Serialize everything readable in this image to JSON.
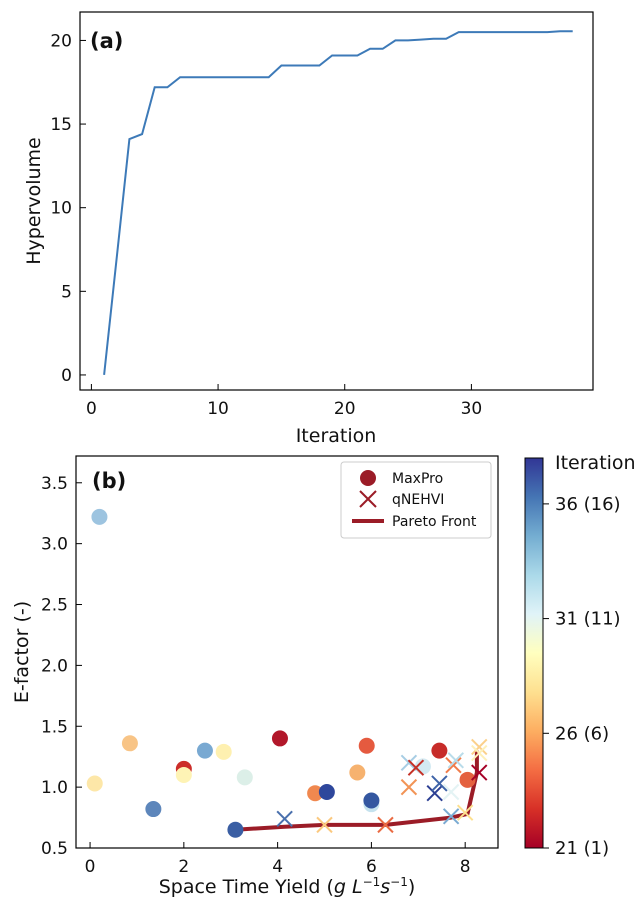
{
  "chart_data": [
    {
      "type": "line",
      "panel_label": "(a)",
      "xlabel": "Iteration",
      "ylabel": "Hypervolume",
      "xlim": [
        -0.9,
        39.6
      ],
      "ylim": [
        -0.9,
        21.7
      ],
      "xticks": [
        0,
        10,
        20,
        30
      ],
      "yticks": [
        0,
        5,
        10,
        15,
        20
      ],
      "line_color": "#3d7ab8",
      "x": [
        1,
        2,
        3,
        4,
        5,
        6,
        7,
        8,
        9,
        10,
        11,
        12,
        13,
        14,
        15,
        16,
        17,
        18,
        19,
        20,
        21,
        22,
        23,
        24,
        25,
        26,
        27,
        28,
        29,
        30,
        31,
        32,
        33,
        34,
        35,
        36,
        37,
        38
      ],
      "y": [
        0,
        7.0,
        14.1,
        14.4,
        17.2,
        17.2,
        17.8,
        17.8,
        17.8,
        17.8,
        17.8,
        17.8,
        17.8,
        17.8,
        18.5,
        18.5,
        18.5,
        18.5,
        19.1,
        19.1,
        19.1,
        19.5,
        19.5,
        20.0,
        20.0,
        20.05,
        20.1,
        20.1,
        20.5,
        20.5,
        20.5,
        20.5,
        20.5,
        20.5,
        20.5,
        20.5,
        20.55,
        20.55
      ]
    },
    {
      "type": "scatter",
      "panel_label": "(b)",
      "xlabel": "Space Time Yield (g L⁻¹s⁻¹)",
      "ylabel": "E-factor (-)",
      "xlim": [
        -0.3,
        8.7
      ],
      "ylim": [
        0.5,
        3.72
      ],
      "xticks": [
        0,
        2,
        4,
        6,
        8
      ],
      "yticks": [
        0.5,
        1.0,
        1.5,
        2.0,
        2.5,
        3.0,
        3.5
      ],
      "legend": {
        "position": "top-right",
        "entries": [
          "MaxPro",
          "qNEHVI",
          "Pareto Front"
        ]
      },
      "colorbar": {
        "title": "Iteration",
        "min": 21,
        "max": 38,
        "ticks": [
          21,
          26,
          31,
          36
        ],
        "tick_labels": [
          "21 (1)",
          "26 (6)",
          "31 (11)",
          "36 (16)"
        ],
        "colors": [
          "#a50026",
          "#d73027",
          "#f46d43",
          "#fdae61",
          "#fee090",
          "#ffffbf",
          "#e0f3f8",
          "#abd9e9",
          "#74add1",
          "#4575b4",
          "#313695"
        ]
      },
      "series": [
        {
          "name": "MaxPro",
          "marker": "circle",
          "points": [
            {
              "x": 0.2,
              "y": 3.22,
              "color": "#9dc4e0"
            },
            {
              "x": 0.1,
              "y": 1.03,
              "color": "#fde7a8"
            },
            {
              "x": 0.85,
              "y": 1.36,
              "color": "#f8c486"
            },
            {
              "x": 1.35,
              "y": 0.82,
              "color": "#5d86bb"
            },
            {
              "x": 2.0,
              "y": 1.15,
              "color": "#cc2e2a"
            },
            {
              "x": 2.0,
              "y": 1.1,
              "color": "#fef3b5"
            },
            {
              "x": 2.45,
              "y": 1.3,
              "color": "#79a9d2"
            },
            {
              "x": 2.85,
              "y": 1.29,
              "color": "#fef0b0"
            },
            {
              "x": 3.3,
              "y": 1.08,
              "color": "#dcefe8"
            },
            {
              "x": 3.1,
              "y": 0.65,
              "color": "#3a5ea3"
            },
            {
              "x": 4.05,
              "y": 1.4,
              "color": "#b2172a"
            },
            {
              "x": 4.8,
              "y": 0.95,
              "color": "#f0884f"
            },
            {
              "x": 5.05,
              "y": 0.96,
              "color": "#2e479c"
            },
            {
              "x": 5.7,
              "y": 1.12,
              "color": "#f6b26f"
            },
            {
              "x": 5.9,
              "y": 1.34,
              "color": "#e55a3f"
            },
            {
              "x": 6.0,
              "y": 0.86,
              "color": "#c5e2ee"
            },
            {
              "x": 6.0,
              "y": 0.89,
              "color": "#3457a0"
            },
            {
              "x": 7.1,
              "y": 1.17,
              "color": "#d3eaf2"
            },
            {
              "x": 7.45,
              "y": 1.3,
              "color": "#c72c29"
            },
            {
              "x": 8.05,
              "y": 1.06,
              "color": "#e4613f"
            }
          ]
        },
        {
          "name": "qNEHVI",
          "marker": "x",
          "points": [
            {
              "x": 4.15,
              "y": 0.74,
              "color": "#4a70ad"
            },
            {
              "x": 5.0,
              "y": 0.69,
              "color": "#fbc97f"
            },
            {
              "x": 6.3,
              "y": 0.69,
              "color": "#ea6b43"
            },
            {
              "x": 6.8,
              "y": 1.2,
              "color": "#a7cde4"
            },
            {
              "x": 6.8,
              "y": 1.0,
              "color": "#f29456"
            },
            {
              "x": 6.95,
              "y": 1.16,
              "color": "#c53127"
            },
            {
              "x": 7.35,
              "y": 0.95,
              "color": "#2c3f93"
            },
            {
              "x": 7.45,
              "y": 1.03,
              "color": "#3e63a8"
            },
            {
              "x": 7.7,
              "y": 0.76,
              "color": "#7aaad2"
            },
            {
              "x": 7.75,
              "y": 1.18,
              "color": "#f17c4a"
            },
            {
              "x": 7.8,
              "y": 1.22,
              "color": "#b9dcea"
            },
            {
              "x": 7.7,
              "y": 0.96,
              "color": "#e3f3f4"
            },
            {
              "x": 8.0,
              "y": 0.79,
              "color": "#fde08e"
            },
            {
              "x": 8.3,
              "y": 1.33,
              "color": "#fbd08a"
            },
            {
              "x": 8.3,
              "y": 1.28,
              "color": "#fef0b8"
            },
            {
              "x": 8.3,
              "y": 1.12,
              "color": "#a50026"
            }
          ]
        },
        {
          "name": "Pareto Front",
          "marker": "line",
          "color": "#9b1c27",
          "points": [
            {
              "x": 3.1,
              "y": 0.65
            },
            {
              "x": 4.15,
              "y": 0.675
            },
            {
              "x": 5.0,
              "y": 0.69
            },
            {
              "x": 6.3,
              "y": 0.69
            },
            {
              "x": 7.7,
              "y": 0.75
            },
            {
              "x": 8.05,
              "y": 0.78
            },
            {
              "x": 8.25,
              "y": 1.12
            },
            {
              "x": 8.25,
              "y": 1.3
            }
          ]
        }
      ]
    }
  ]
}
